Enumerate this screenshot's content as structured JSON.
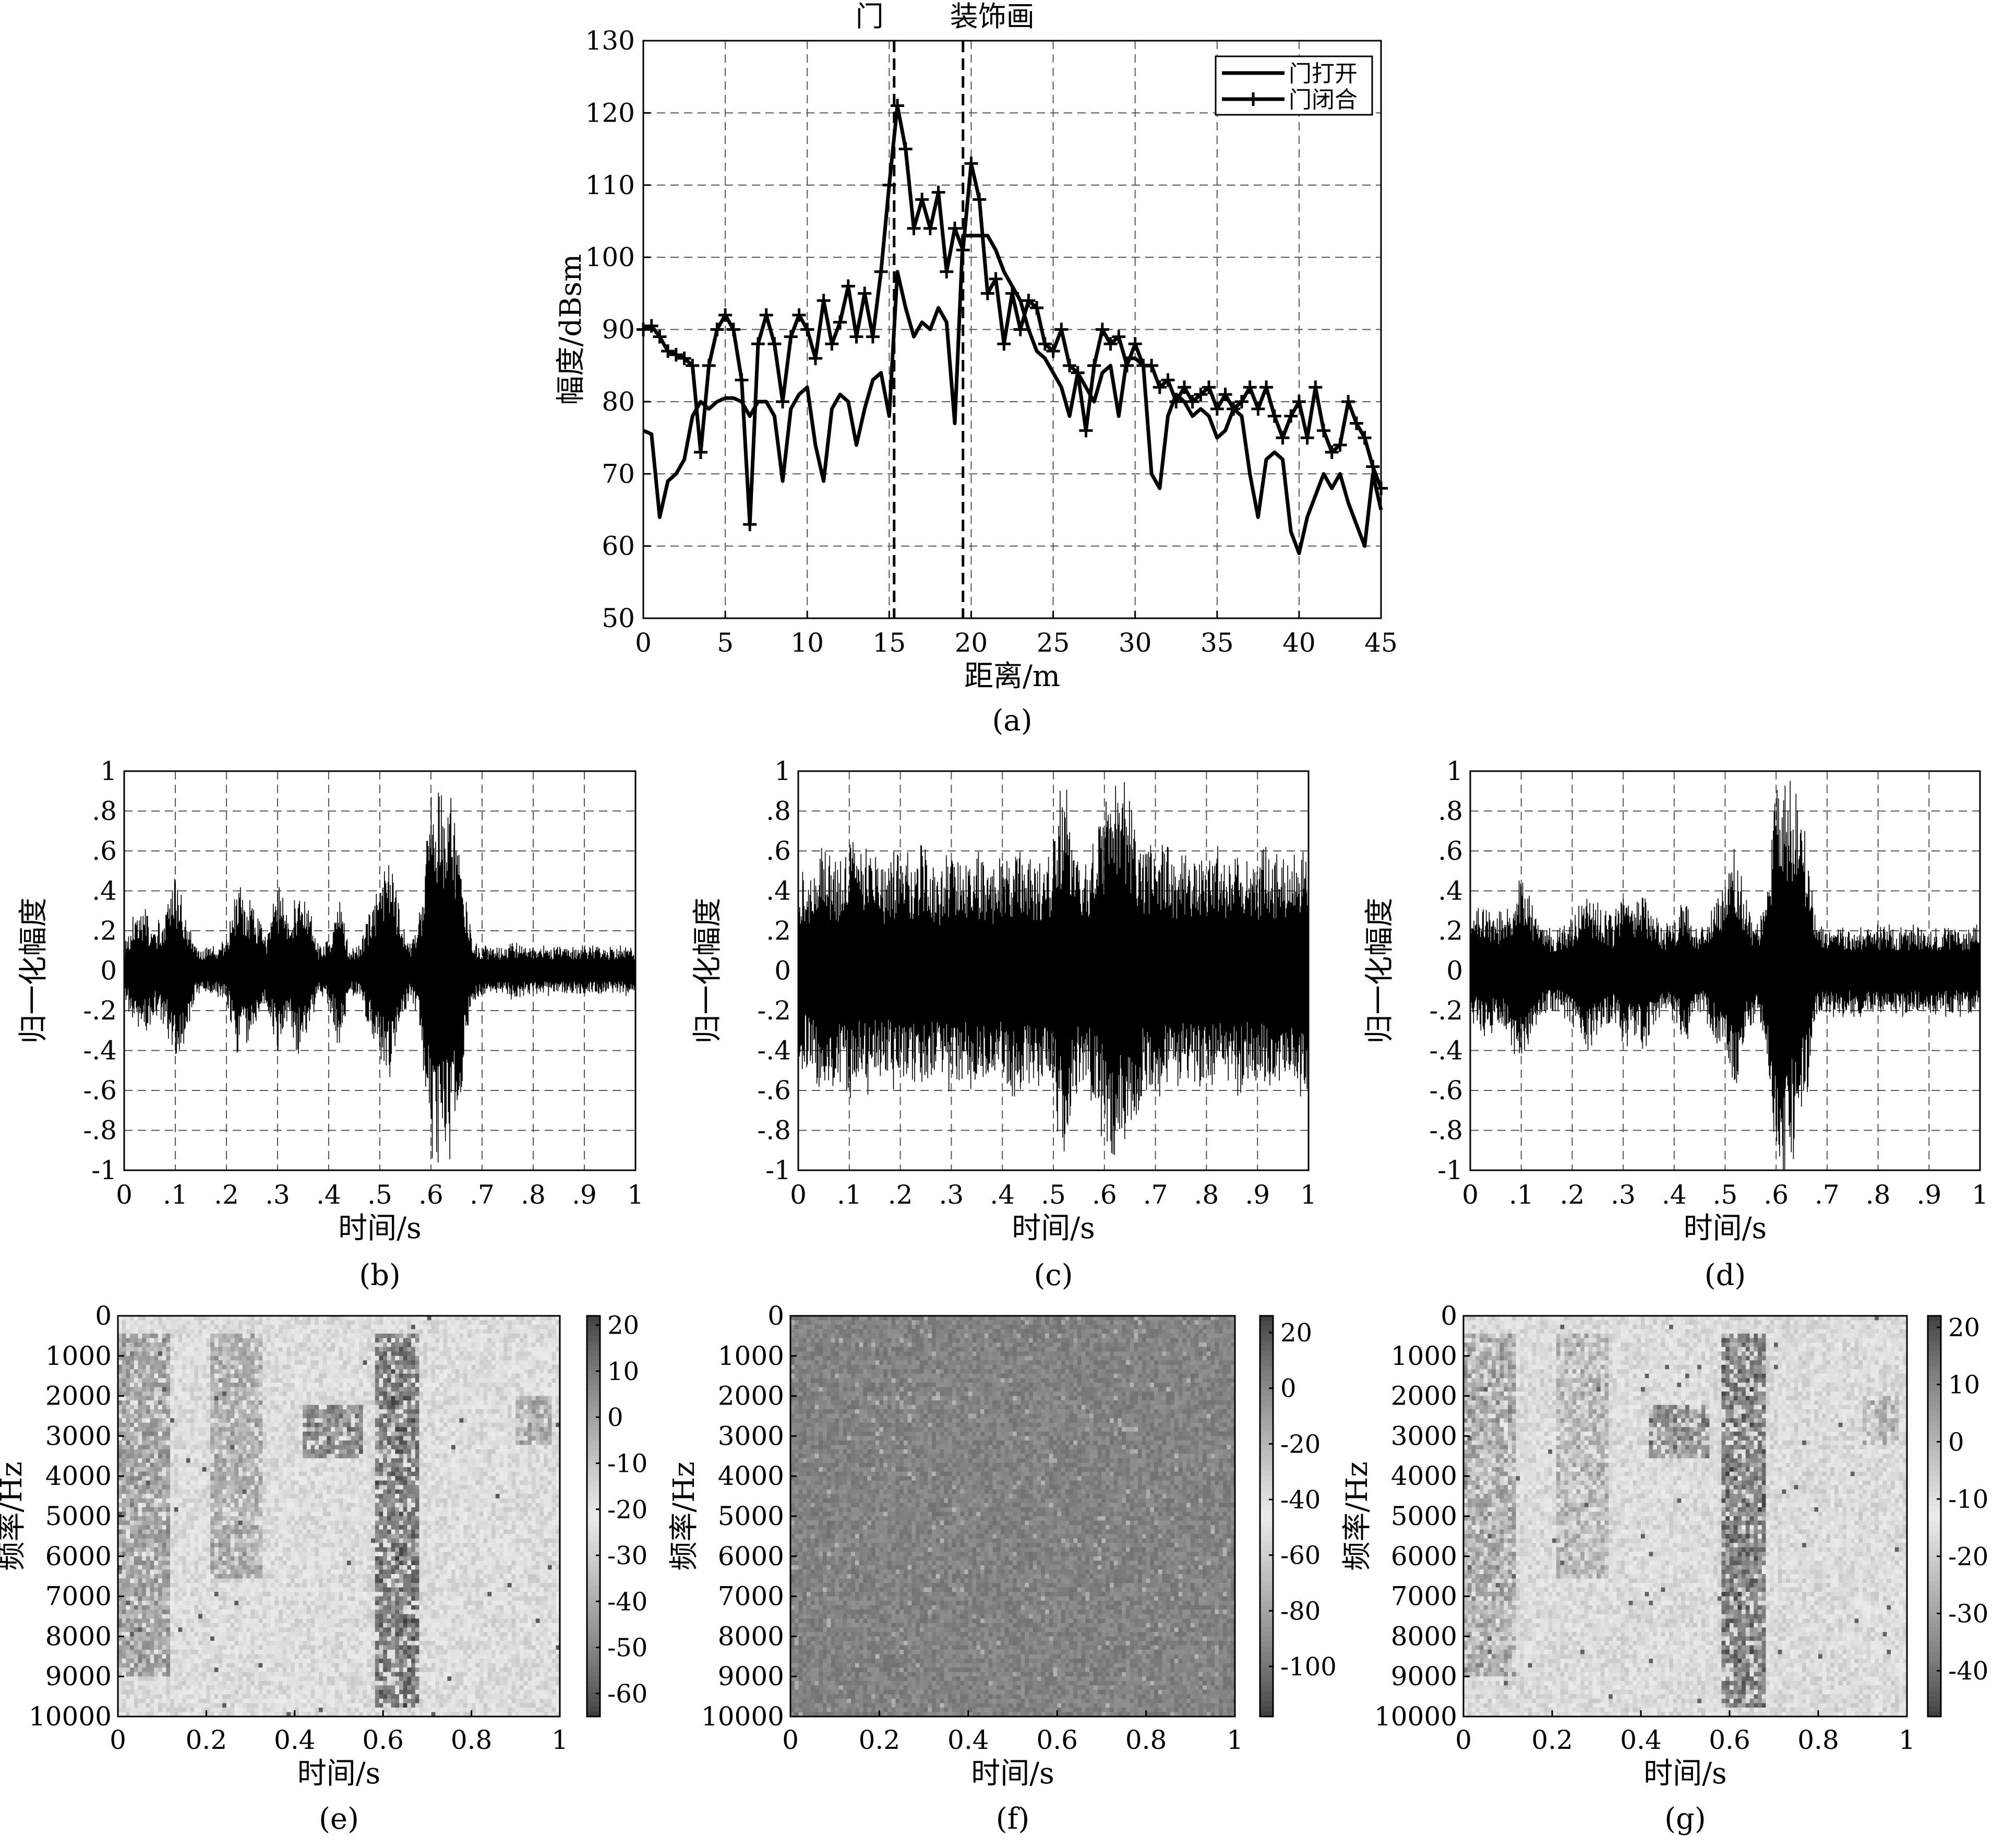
{
  "chart_data": [
    {
      "id": "a",
      "type": "line",
      "caption": "(a)",
      "xlabel": "距离/m",
      "ylabel": "幅度/dBsm",
      "xlim": [
        0,
        45
      ],
      "ylim": [
        50,
        130
      ],
      "xticks": [
        0,
        5,
        10,
        15,
        20,
        25,
        30,
        35,
        40,
        45
      ],
      "yticks": [
        50,
        60,
        70,
        80,
        90,
        100,
        110,
        120,
        130
      ],
      "grid": true,
      "legend": "top-right",
      "markers": [
        {
          "label": "门",
          "x": 15.3
        },
        {
          "label": "装饰画",
          "x": 19.5
        }
      ],
      "series": [
        {
          "name": "门打开",
          "marker": "none",
          "x": [
            0,
            0.5,
            1,
            1.5,
            2,
            2.5,
            3,
            3.5,
            4,
            4.5,
            5,
            5.5,
            6,
            6.5,
            7,
            7.5,
            8,
            8.5,
            9,
            9.5,
            10,
            10.5,
            11,
            11.5,
            12,
            12.5,
            13,
            13.5,
            14,
            14.5,
            15,
            15.5,
            16,
            16.5,
            17,
            17.5,
            18,
            18.5,
            19,
            19.5,
            20,
            20.5,
            21,
            21.5,
            22,
            22.5,
            23,
            23.5,
            24,
            24.5,
            25,
            25.5,
            26,
            26.5,
            27,
            27.5,
            28,
            28.5,
            29,
            29.5,
            30,
            30.5,
            31,
            31.5,
            32,
            32.5,
            33,
            33.5,
            34,
            34.5,
            35,
            35.5,
            36,
            36.5,
            37,
            37.5,
            38,
            38.5,
            39,
            39.5,
            40,
            40.5,
            41,
            41.5,
            42,
            42.5,
            43,
            43.5,
            44,
            44.5,
            45
          ],
          "values": [
            76,
            75.5,
            64,
            69,
            70,
            72,
            78,
            80,
            79,
            80,
            80.5,
            80.5,
            80,
            78,
            80,
            80,
            78,
            69,
            79,
            81,
            82,
            74,
            69,
            79,
            81,
            80,
            74,
            79,
            83,
            84,
            78,
            98,
            93,
            89,
            91,
            90,
            93,
            91,
            77,
            103,
            103,
            103,
            103,
            101,
            98,
            96,
            94,
            90,
            87,
            86,
            84,
            82,
            78,
            84,
            82,
            80,
            84,
            85,
            78,
            86,
            86,
            85,
            70,
            68,
            78,
            81,
            80,
            78,
            79,
            78,
            75,
            76,
            79,
            78,
            70,
            64,
            72,
            73,
            72,
            62,
            59,
            64,
            67,
            70,
            68,
            70,
            66,
            63,
            60,
            70,
            65
          ]
        },
        {
          "name": "门闭合",
          "marker": "plus",
          "x": [
            0,
            0.5,
            1,
            1.5,
            2,
            2.5,
            3,
            3.5,
            4,
            4.5,
            5,
            5.5,
            6,
            6.5,
            7,
            7.5,
            8,
            8.5,
            9,
            9.5,
            10,
            10.5,
            11,
            11.5,
            12,
            12.5,
            13,
            13.5,
            14,
            14.5,
            15,
            15.5,
            16,
            16.5,
            17,
            17.5,
            18,
            18.5,
            19,
            19.5,
            20,
            20.5,
            21,
            21.5,
            22,
            22.5,
            23,
            23.5,
            24,
            24.5,
            25,
            25.5,
            26,
            26.5,
            27,
            27.5,
            28,
            28.5,
            29,
            29.5,
            30,
            30.5,
            31,
            31.5,
            32,
            32.5,
            33,
            33.5,
            34,
            34.5,
            35,
            35.5,
            36,
            36.5,
            37,
            37.5,
            38,
            38.5,
            39,
            39.5,
            40,
            40.5,
            41,
            41.5,
            42,
            42.5,
            43,
            43.5,
            44,
            44.5,
            45
          ],
          "values": [
            90,
            90.5,
            89,
            87,
            86.5,
            86,
            85,
            73,
            85,
            90,
            92,
            90,
            83,
            63,
            88,
            92,
            88,
            80,
            89,
            92,
            90,
            86,
            94,
            88,
            91,
            96,
            89,
            95,
            89,
            98,
            110,
            121,
            115,
            104,
            108,
            104,
            109,
            98,
            104,
            101,
            113,
            108,
            95,
            97,
            88,
            95,
            90,
            94,
            93,
            88,
            87,
            90,
            85,
            84,
            76,
            85,
            90,
            88,
            89,
            85,
            88,
            85,
            85,
            82,
            83,
            80,
            82,
            80,
            81,
            82,
            79,
            81,
            79,
            80,
            82,
            79,
            82,
            78,
            75,
            78,
            80,
            75,
            82,
            76,
            73,
            74,
            80,
            77,
            75,
            71,
            68
          ]
        }
      ]
    },
    {
      "id": "b",
      "type": "line",
      "caption": "(b)",
      "xlabel": "时间/s",
      "ylabel": "归一化幅度",
      "xlim": [
        0,
        1
      ],
      "ylim": [
        -1,
        1
      ],
      "grid": true,
      "series": [
        {
          "name": "",
          "x": [
            0,
            0.02,
            0.04,
            0.06,
            0.08,
            0.1,
            0.12,
            0.14,
            0.16,
            0.18,
            0.2,
            0.22,
            0.24,
            0.26,
            0.28,
            0.3,
            0.32,
            0.34,
            0.36,
            0.38,
            0.4,
            0.42,
            0.44,
            0.46,
            0.48,
            0.5,
            0.52,
            0.54,
            0.56,
            0.58,
            0.6,
            0.62,
            0.64,
            0.66,
            0.68,
            0.7,
            0.72,
            0.74,
            0.76,
            0.78,
            0.8,
            0.82,
            0.84,
            0.86,
            0.88,
            0.9,
            0.92,
            0.94,
            0.96,
            0.98,
            1
          ],
          "values": [
            0.12,
            0.28,
            0.3,
            0.22,
            0.28,
            0.48,
            0.32,
            0.12,
            0.11,
            0.12,
            0.15,
            0.42,
            0.36,
            0.28,
            0.18,
            0.42,
            0.28,
            0.4,
            0.32,
            0.12,
            0.16,
            0.38,
            0.12,
            0.12,
            0.3,
            0.44,
            0.58,
            0.3,
            0.12,
            0.3,
            0.95,
            0.9,
            0.9,
            0.55,
            0.16,
            0.12,
            0.12,
            0.12,
            0.14,
            0.12,
            0.12,
            0.12,
            0.12,
            0.12,
            0.12,
            0.12,
            0.12,
            0.12,
            0.12,
            0.12,
            0.12
          ]
        }
      ]
    },
    {
      "id": "c",
      "type": "line",
      "caption": "(c)",
      "xlabel": "时间/s",
      "ylabel": "归一化幅度",
      "xlim": [
        0,
        1
      ],
      "ylim": [
        -1,
        1
      ],
      "grid": true,
      "series": [
        {
          "name": "",
          "x": [
            0,
            0.02,
            0.04,
            0.06,
            0.08,
            0.1,
            0.12,
            0.14,
            0.16,
            0.18,
            0.2,
            0.22,
            0.24,
            0.26,
            0.28,
            0.3,
            0.32,
            0.34,
            0.36,
            0.38,
            0.4,
            0.42,
            0.44,
            0.46,
            0.48,
            0.5,
            0.52,
            0.54,
            0.56,
            0.58,
            0.6,
            0.62,
            0.64,
            0.66,
            0.68,
            0.7,
            0.72,
            0.74,
            0.76,
            0.78,
            0.8,
            0.82,
            0.84,
            0.86,
            0.88,
            0.9,
            0.92,
            0.94,
            0.96,
            0.98,
            1
          ],
          "values": [
            0.45,
            0.5,
            0.6,
            0.55,
            0.55,
            0.65,
            0.55,
            0.6,
            0.5,
            0.55,
            0.6,
            0.55,
            0.6,
            0.55,
            0.5,
            0.6,
            0.55,
            0.6,
            0.55,
            0.5,
            0.55,
            0.6,
            0.6,
            0.55,
            0.55,
            0.62,
            0.98,
            0.6,
            0.55,
            0.65,
            0.85,
            0.88,
            0.9,
            0.7,
            0.6,
            0.6,
            0.6,
            0.55,
            0.55,
            0.6,
            0.55,
            0.6,
            0.55,
            0.6,
            0.55,
            0.55,
            0.6,
            0.55,
            0.6,
            0.6,
            0.6
          ]
        }
      ]
    },
    {
      "id": "d",
      "type": "line",
      "caption": "(d)",
      "xlabel": "时间/s",
      "ylabel": "归一化幅度",
      "xlim": [
        0,
        1
      ],
      "ylim": [
        -1,
        1
      ],
      "grid": true,
      "series": [
        {
          "name": "",
          "x": [
            0,
            0.02,
            0.04,
            0.06,
            0.08,
            0.1,
            0.12,
            0.14,
            0.16,
            0.18,
            0.2,
            0.22,
            0.24,
            0.26,
            0.28,
            0.3,
            0.32,
            0.34,
            0.36,
            0.38,
            0.4,
            0.42,
            0.44,
            0.46,
            0.48,
            0.5,
            0.52,
            0.54,
            0.56,
            0.58,
            0.6,
            0.62,
            0.64,
            0.66,
            0.68,
            0.7,
            0.72,
            0.74,
            0.76,
            0.78,
            0.8,
            0.82,
            0.84,
            0.86,
            0.88,
            0.9,
            0.92,
            0.94,
            0.96,
            0.98,
            1
          ],
          "values": [
            0.22,
            0.32,
            0.3,
            0.28,
            0.35,
            0.5,
            0.32,
            0.22,
            0.2,
            0.22,
            0.25,
            0.42,
            0.35,
            0.3,
            0.25,
            0.4,
            0.3,
            0.38,
            0.3,
            0.22,
            0.24,
            0.38,
            0.22,
            0.22,
            0.35,
            0.45,
            0.6,
            0.35,
            0.22,
            0.35,
            0.95,
            1,
            0.95,
            0.6,
            0.25,
            0.22,
            0.22,
            0.22,
            0.22,
            0.22,
            0.22,
            0.22,
            0.22,
            0.22,
            0.22,
            0.22,
            0.22,
            0.22,
            0.22,
            0.22,
            0.22
          ]
        }
      ]
    },
    {
      "id": "e",
      "type": "heatmap",
      "caption": "(e)",
      "xlabel": "时间/s",
      "ylabel": "频率/Hz",
      "xlim": [
        0,
        1
      ],
      "ylim": [
        0,
        10000
      ],
      "xticks": [
        0,
        0.2,
        0.4,
        0.6,
        0.8,
        1
      ],
      "xtick_labels": [
        "0",
        "0.2",
        "0.4",
        "0.6",
        "0.8",
        "1"
      ],
      "yticks": [
        0,
        1000,
        2000,
        3000,
        4000,
        5000,
        6000,
        7000,
        8000,
        9000,
        10000
      ],
      "colorbar": {
        "min": -65,
        "max": 22,
        "ticks": [
          20,
          10,
          0,
          -10,
          -20,
          -30,
          -40,
          -50,
          -60
        ]
      },
      "colormap": "gray-diverging",
      "background_level": -18
    },
    {
      "id": "f",
      "type": "heatmap",
      "caption": "(f)",
      "xlabel": "时间/s",
      "ylabel": "频率/Hz",
      "xlim": [
        0,
        1
      ],
      "ylim": [
        0,
        10000
      ],
      "xticks": [
        0,
        0.2,
        0.4,
        0.6,
        0.8,
        1
      ],
      "xtick_labels": [
        "0",
        "0.2",
        "0.4",
        "0.6",
        "0.8",
        "1"
      ],
      "yticks": [
        0,
        1000,
        2000,
        3000,
        4000,
        5000,
        6000,
        7000,
        8000,
        9000,
        10000
      ],
      "colorbar": {
        "min": -118,
        "max": 26,
        "ticks": [
          20,
          0,
          -20,
          -40,
          -60,
          -80,
          -100
        ]
      },
      "colormap": "gray-diverging",
      "background_level": -95
    },
    {
      "id": "g",
      "type": "heatmap",
      "caption": "(g)",
      "xlabel": "时间/s",
      "ylabel": "频率/Hz",
      "xlim": [
        0,
        1
      ],
      "ylim": [
        0,
        10000
      ],
      "xticks": [
        0,
        0.2,
        0.4,
        0.6,
        0.8,
        1
      ],
      "xtick_labels": [
        "0",
        "0.2",
        "0.4",
        "0.6",
        "0.8",
        "1"
      ],
      "yticks": [
        0,
        1000,
        2000,
        3000,
        4000,
        5000,
        6000,
        7000,
        8000,
        9000,
        10000
      ],
      "colorbar": {
        "min": -48,
        "max": 22,
        "ticks": [
          20,
          10,
          0,
          -10,
          -20,
          -30,
          -40
        ]
      },
      "colormap": "gray-diverging",
      "background_level": -15
    }
  ]
}
